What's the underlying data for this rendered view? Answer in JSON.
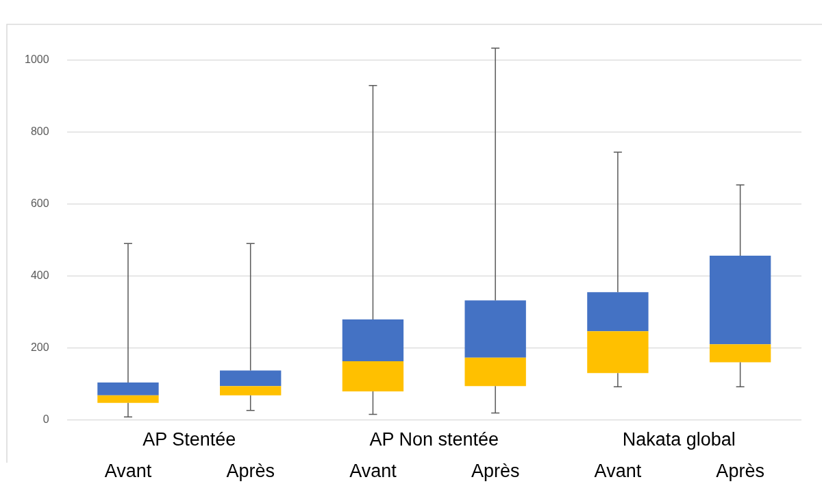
{
  "chart_data": {
    "type": "box",
    "categories": [
      "Avant",
      "Après",
      "Avant",
      "Après",
      "Avant",
      "Après"
    ],
    "annotations": [
      "AP Stentée",
      "AP Non stentée",
      "Nakata global"
    ],
    "boxes": [
      {
        "low": 9,
        "q1": 48,
        "median": 69,
        "q3": 105,
        "high": 491
      },
      {
        "low": 27,
        "q1": 69,
        "median": 95,
        "q3": 138,
        "high": 491
      },
      {
        "low": 16,
        "q1": 80,
        "median": 164,
        "q3": 280,
        "high": 930
      },
      {
        "low": 20,
        "q1": 95,
        "median": 174,
        "q3": 333,
        "high": 1034
      },
      {
        "low": 93,
        "q1": 131,
        "median": 247,
        "q3": 356,
        "high": 745
      },
      {
        "low": 93,
        "q1": 161,
        "median": 211,
        "q3": 457,
        "high": 654
      }
    ],
    "ylim": [
      0,
      1100
    ],
    "yticks": [
      0,
      200,
      400,
      600,
      800,
      1000
    ],
    "grid": "y"
  }
}
